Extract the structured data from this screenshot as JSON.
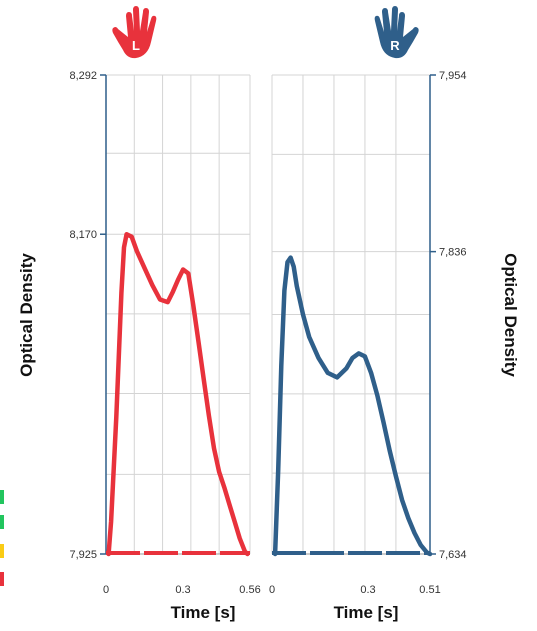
{
  "chart_data": [
    {
      "type": "line",
      "panel": "left",
      "hand_letter": "L",
      "hand_icon": "left-hand-icon",
      "color": "#e8323c",
      "xlabel": "Time [s]",
      "ylabel": "Optical Density",
      "xlim": [
        0,
        0.56
      ],
      "ylim": [
        7925,
        8292
      ],
      "x_ticks": [
        "0",
        "0.3",
        "0.56"
      ],
      "y_ticks": [
        "8,292",
        "8,170",
        "7,925"
      ],
      "y_tick_values": [
        8292,
        8170,
        7925
      ],
      "x_grid": [
        0.11,
        0.22,
        0.33,
        0.44
      ],
      "y_grid": [
        8232,
        8109,
        8048,
        7986
      ],
      "grid": true,
      "series": [
        {
          "x": [
            0.01,
            0.02,
            0.04,
            0.06,
            0.07,
            0.08,
            0.1,
            0.12,
            0.15,
            0.18,
            0.21,
            0.24,
            0.26,
            0.28,
            0.3,
            0.32,
            0.34,
            0.36,
            0.38,
            0.4,
            0.42,
            0.44,
            0.46,
            0.48,
            0.5,
            0.52,
            0.54,
            0.55
          ],
          "y": [
            7925,
            7950,
            8030,
            8125,
            8160,
            8170,
            8168,
            8157,
            8144,
            8131,
            8120,
            8118,
            8126,
            8135,
            8143,
            8140,
            8115,
            8087,
            8059,
            8031,
            8006,
            7988,
            7976,
            7963,
            7950,
            7937,
            7927,
            7925
          ]
        }
      ]
    },
    {
      "type": "line",
      "panel": "right",
      "hand_letter": "R",
      "hand_icon": "right-hand-icon",
      "color": "#2f5f8a",
      "xlabel": "Time [s]",
      "ylabel": "Optical Density",
      "xlim": [
        0,
        0.51
      ],
      "ylim": [
        7634,
        7954
      ],
      "x_ticks": [
        "0",
        "0.3",
        "0.51"
      ],
      "y_ticks": [
        "7,954",
        "7,836",
        "7,634"
      ],
      "y_tick_values": [
        7954,
        7836,
        7634
      ],
      "x_grid": [
        0.1,
        0.2,
        0.3,
        0.4
      ],
      "y_grid": [
        7901,
        7794,
        7741,
        7688
      ],
      "grid": true,
      "series": [
        {
          "x": [
            0.01,
            0.02,
            0.03,
            0.04,
            0.05,
            0.06,
            0.07,
            0.08,
            0.1,
            0.12,
            0.15,
            0.18,
            0.21,
            0.24,
            0.26,
            0.28,
            0.3,
            0.32,
            0.34,
            0.36,
            0.38,
            0.4,
            0.42,
            0.44,
            0.46,
            0.48,
            0.5,
            0.51
          ],
          "y": [
            7634,
            7690,
            7760,
            7810,
            7829,
            7832,
            7826,
            7813,
            7794,
            7779,
            7765,
            7755,
            7752,
            7758,
            7765,
            7768,
            7766,
            7755,
            7740,
            7722,
            7703,
            7686,
            7670,
            7658,
            7648,
            7640,
            7635,
            7634
          ]
        }
      ]
    }
  ],
  "colors": {
    "grid": "#d4d4d4",
    "frame": "#2f5f8a",
    "legend": [
      "#22c55e",
      "#22c55e",
      "#facc15",
      "#e8323c"
    ]
  }
}
